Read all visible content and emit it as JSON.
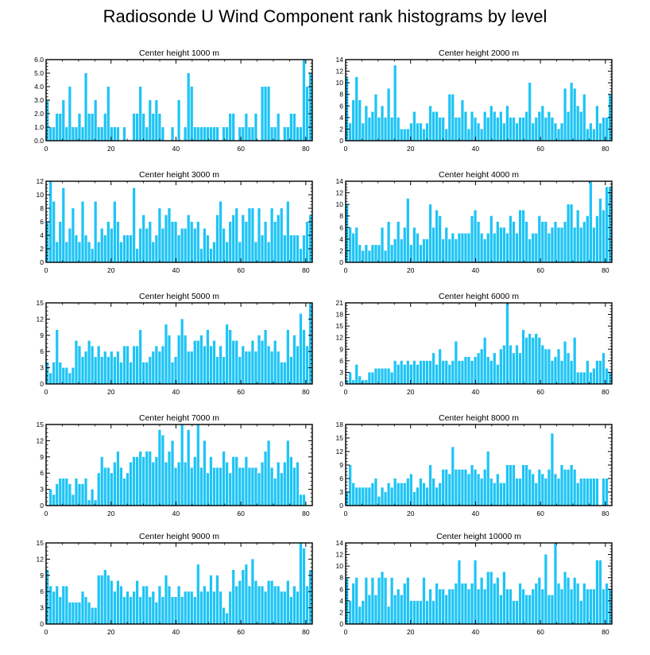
{
  "figure_title": "Radiosonde U Wind Component rank histograms by level",
  "colors": {
    "bar": "#1ec4f5",
    "axis": "#000000",
    "background": "#ffffff"
  },
  "chart_data": [
    {
      "type": "bar",
      "title": "Center height 1000 m",
      "xlim": [
        0,
        82
      ],
      "ylim": [
        0,
        6
      ],
      "yticks": [
        0,
        1,
        2,
        3,
        4,
        5,
        6
      ],
      "ytick_labels": [
        "0.0",
        "1.0",
        "2.0",
        "3.0",
        "4.0",
        "5.0",
        "6.0"
      ],
      "xticks": [
        0,
        20,
        40,
        60,
        80
      ],
      "values": [
        3,
        1,
        1,
        2,
        2,
        3,
        1,
        4,
        1,
        1,
        2,
        1,
        5,
        2,
        2,
        3,
        1,
        1,
        2,
        4,
        1,
        1,
        1,
        0,
        1,
        0,
        0,
        2,
        2,
        4,
        2,
        1,
        3,
        2,
        3,
        2,
        1,
        0,
        0,
        1,
        0,
        3,
        0,
        1,
        5,
        4,
        1,
        1,
        1,
        1,
        1,
        1,
        1,
        1,
        0,
        1,
        1,
        2,
        2,
        0,
        1,
        1,
        2,
        1,
        1,
        2,
        0,
        4,
        4,
        4,
        1,
        1,
        2,
        0,
        1,
        1,
        2,
        2,
        1,
        1,
        6,
        4,
        5
      ]
    },
    {
      "type": "bar",
      "title": "Center height 2000 m",
      "xlim": [
        0,
        82
      ],
      "ylim": [
        0,
        14
      ],
      "yticks": [
        0,
        2,
        4,
        6,
        8,
        10,
        12,
        14
      ],
      "ytick_labels": [
        "0",
        "2",
        "4",
        "6",
        "8",
        "10",
        "12",
        "14"
      ],
      "xticks": [
        0,
        20,
        40,
        60,
        80
      ],
      "values": [
        11,
        3,
        7,
        11,
        7,
        3,
        6,
        4,
        5,
        8,
        4,
        6,
        4,
        9,
        4,
        13,
        4,
        2,
        2,
        2,
        3,
        5,
        3,
        3,
        2,
        3,
        6,
        5,
        5,
        4,
        4,
        2,
        8,
        8,
        4,
        4,
        7,
        5,
        2,
        5,
        4,
        3,
        2,
        5,
        4,
        6,
        5,
        4,
        5,
        3,
        6,
        4,
        4,
        3,
        4,
        4,
        5,
        10,
        3,
        4,
        5,
        6,
        4,
        5,
        4,
        3,
        2,
        3,
        9,
        5,
        10,
        9,
        6,
        5,
        8,
        2,
        3,
        2,
        6,
        3,
        4,
        4,
        8
      ]
    },
    {
      "type": "bar",
      "title": "Center height 3000 m",
      "xlim": [
        0,
        82
      ],
      "ylim": [
        0,
        12
      ],
      "yticks": [
        0,
        2,
        4,
        6,
        8,
        10,
        12
      ],
      "ytick_labels": [
        "0",
        "2",
        "4",
        "6",
        "8",
        "10",
        "12"
      ],
      "xticks": [
        0,
        20,
        40,
        60,
        80
      ],
      "values": [
        6,
        12,
        9,
        3,
        6,
        11,
        3,
        5,
        8,
        4,
        3,
        9,
        4,
        3,
        2,
        9,
        3,
        5,
        4,
        6,
        5,
        9,
        6,
        3,
        4,
        4,
        4,
        11,
        2,
        5,
        7,
        5,
        6,
        3,
        4,
        8,
        5,
        7,
        8,
        6,
        6,
        4,
        5,
        5,
        7,
        6,
        5,
        6,
        2,
        5,
        4,
        2,
        3,
        7,
        9,
        5,
        3,
        6,
        7,
        8,
        3,
        7,
        6,
        8,
        8,
        3,
        8,
        4,
        6,
        3,
        8,
        6,
        7,
        8,
        4,
        9,
        4,
        4,
        4,
        2,
        4,
        6,
        7
      ]
    },
    {
      "type": "bar",
      "title": "Center height 4000 m",
      "xlim": [
        0,
        82
      ],
      "ylim": [
        0,
        14
      ],
      "yticks": [
        0,
        2,
        4,
        6,
        8,
        10,
        12,
        14
      ],
      "ytick_labels": [
        "0",
        "2",
        "4",
        "6",
        "8",
        "10",
        "12",
        "14"
      ],
      "xticks": [
        0,
        20,
        40,
        60,
        80
      ],
      "values": [
        10,
        6,
        5,
        6,
        3,
        2,
        3,
        2,
        3,
        3,
        3,
        6,
        2,
        7,
        3,
        4,
        7,
        4,
        6,
        11,
        3,
        6,
        5,
        3,
        4,
        4,
        10,
        6,
        9,
        8,
        4,
        6,
        4,
        5,
        4,
        5,
        5,
        5,
        5,
        8,
        9,
        7,
        5,
        4,
        5,
        8,
        5,
        7,
        6,
        6,
        5,
        8,
        7,
        5,
        9,
        9,
        7,
        4,
        5,
        5,
        8,
        7,
        7,
        5,
        6,
        7,
        6,
        6,
        7,
        10,
        10,
        6,
        9,
        6,
        7,
        8,
        14,
        6,
        8,
        11,
        9,
        13,
        13
      ]
    },
    {
      "type": "bar",
      "title": "Center height 5000 m",
      "xlim": [
        0,
        82
      ],
      "ylim": [
        0,
        15
      ],
      "yticks": [
        0,
        3,
        6,
        9,
        12,
        15
      ],
      "ytick_labels": [
        "0",
        "3",
        "6",
        "9",
        "12",
        "15"
      ],
      "xticks": [
        0,
        20,
        40,
        60,
        80
      ],
      "values": [
        4,
        2,
        4,
        10,
        4,
        3,
        3,
        2,
        3,
        8,
        7,
        5,
        6,
        8,
        7,
        5,
        7,
        5,
        6,
        5,
        6,
        5,
        6,
        4,
        7,
        7,
        4,
        7,
        7,
        10,
        4,
        4,
        5,
        6,
        7,
        6,
        7,
        11,
        9,
        4,
        5,
        9,
        12,
        9,
        6,
        6,
        8,
        8,
        9,
        7,
        10,
        7,
        8,
        5,
        7,
        5,
        11,
        10,
        8,
        8,
        5,
        7,
        6,
        6,
        8,
        6,
        9,
        8,
        10,
        7,
        6,
        8,
        6,
        4,
        4,
        10,
        5,
        9,
        7,
        13,
        10,
        7,
        15
      ]
    },
    {
      "type": "bar",
      "title": "Center height 6000 m",
      "xlim": [
        0,
        82
      ],
      "ylim": [
        0,
        21
      ],
      "yticks": [
        0,
        3,
        6,
        9,
        12,
        15,
        18,
        21
      ],
      "ytick_labels": [
        "0",
        "3",
        "6",
        "9",
        "12",
        "15",
        "18",
        "21"
      ],
      "xticks": [
        0,
        20,
        40,
        60,
        80
      ],
      "values": [
        1,
        3,
        1,
        5,
        2,
        1,
        1,
        3,
        3,
        4,
        4,
        4,
        4,
        4,
        3,
        6,
        5,
        6,
        5,
        6,
        5,
        6,
        5,
        6,
        6,
        6,
        6,
        8,
        5,
        9,
        6,
        6,
        5,
        6,
        11,
        6,
        6,
        7,
        7,
        6,
        7,
        8,
        9,
        12,
        7,
        6,
        8,
        5,
        9,
        10,
        21,
        10,
        8,
        10,
        8,
        14,
        12,
        13,
        12,
        13,
        12,
        10,
        9,
        9,
        6,
        7,
        9,
        6,
        11,
        8,
        6,
        12,
        3,
        3,
        3,
        6,
        3,
        4,
        6,
        6,
        8,
        4,
        3
      ]
    },
    {
      "type": "bar",
      "title": "Center height 7000 m",
      "xlim": [
        0,
        82
      ],
      "ylim": [
        0,
        15
      ],
      "yticks": [
        0,
        3,
        6,
        9,
        12,
        15
      ],
      "ytick_labels": [
        "0",
        "3",
        "6",
        "9",
        "12",
        "15"
      ],
      "xticks": [
        0,
        20,
        40,
        60,
        80
      ],
      "values": [
        0,
        3,
        2,
        4,
        5,
        5,
        5,
        4,
        2,
        5,
        4,
        4,
        5,
        1,
        3,
        1,
        6,
        9,
        7,
        7,
        6,
        8,
        10,
        7,
        5,
        6,
        8,
        9,
        9,
        10,
        9,
        10,
        10,
        8,
        9,
        14,
        13,
        8,
        10,
        12,
        7,
        8,
        15,
        8,
        14,
        7,
        9,
        15,
        7,
        12,
        6,
        9,
        7,
        7,
        7,
        10,
        8,
        6,
        9,
        9,
        7,
        7,
        9,
        7,
        7,
        7,
        6,
        8,
        10,
        12,
        7,
        5,
        8,
        6,
        8,
        12,
        9,
        7,
        8,
        2,
        2,
        0,
        0
      ]
    },
    {
      "type": "bar",
      "title": "Center height 8000 m",
      "xlim": [
        0,
        82
      ],
      "ylim": [
        0,
        18
      ],
      "yticks": [
        0,
        3,
        6,
        9,
        12,
        15,
        18
      ],
      "ytick_labels": [
        "0",
        "3",
        "6",
        "9",
        "12",
        "15",
        "18"
      ],
      "xticks": [
        0,
        20,
        40,
        60,
        80
      ],
      "values": [
        3,
        9,
        5,
        4,
        4,
        4,
        4,
        4,
        5,
        6,
        2,
        4,
        3,
        5,
        4,
        6,
        5,
        5,
        5,
        6,
        7,
        3,
        4,
        6,
        5,
        4,
        9,
        6,
        4,
        5,
        8,
        8,
        7,
        13,
        8,
        8,
        8,
        8,
        7,
        9,
        8,
        7,
        6,
        8,
        12,
        6,
        5,
        7,
        5,
        5,
        9,
        9,
        9,
        6,
        6,
        9,
        9,
        8,
        7,
        5,
        8,
        7,
        6,
        8,
        16,
        7,
        6,
        9,
        8,
        8,
        9,
        8,
        5,
        6,
        6,
        6,
        6,
        6,
        6,
        0,
        6,
        6,
        0
      ]
    },
    {
      "type": "bar",
      "title": "Center height 9000 m",
      "xlim": [
        0,
        82
      ],
      "ylim": [
        0,
        15
      ],
      "yticks": [
        0,
        3,
        6,
        9,
        12,
        15
      ],
      "ytick_labels": [
        "0",
        "3",
        "6",
        "9",
        "12",
        "15"
      ],
      "xticks": [
        0,
        20,
        40,
        60,
        80
      ],
      "values": [
        10,
        7,
        6,
        7,
        5,
        7,
        7,
        4,
        4,
        4,
        4,
        6,
        5,
        4,
        3,
        3,
        9,
        9,
        10,
        9,
        8,
        6,
        8,
        7,
        5,
        6,
        5,
        6,
        8,
        5,
        7,
        7,
        5,
        6,
        4,
        7,
        5,
        9,
        7,
        5,
        5,
        7,
        5,
        6,
        6,
        6,
        5,
        11,
        6,
        7,
        6,
        9,
        6,
        9,
        6,
        3,
        2,
        6,
        10,
        7,
        8,
        10,
        11,
        7,
        12,
        8,
        7,
        7,
        6,
        8,
        8,
        7,
        7,
        6,
        6,
        8,
        5,
        7,
        6,
        15,
        14,
        7,
        10
      ]
    },
    {
      "type": "bar",
      "title": "Center height 10000 m",
      "xlim": [
        0,
        82
      ],
      "ylim": [
        0,
        14
      ],
      "yticks": [
        0,
        2,
        4,
        6,
        8,
        10,
        12,
        14
      ],
      "ytick_labels": [
        "0",
        "2",
        "4",
        "6",
        "8",
        "10",
        "12",
        "14"
      ],
      "xticks": [
        0,
        20,
        40,
        60,
        80
      ],
      "values": [
        8,
        4,
        7,
        8,
        3,
        4,
        8,
        5,
        8,
        5,
        8,
        9,
        8,
        3,
        8,
        5,
        6,
        5,
        7,
        8,
        4,
        4,
        4,
        4,
        8,
        4,
        6,
        4,
        7,
        6,
        6,
        5,
        6,
        6,
        7,
        11,
        7,
        7,
        6,
        7,
        11,
        6,
        8,
        6,
        9,
        9,
        7,
        8,
        5,
        9,
        6,
        6,
        4,
        4,
        7,
        6,
        5,
        5,
        6,
        7,
        8,
        6,
        12,
        5,
        5,
        14,
        7,
        6,
        9,
        8,
        6,
        8,
        7,
        4,
        7,
        6,
        6,
        6,
        11,
        11,
        6,
        7,
        6
      ]
    }
  ]
}
